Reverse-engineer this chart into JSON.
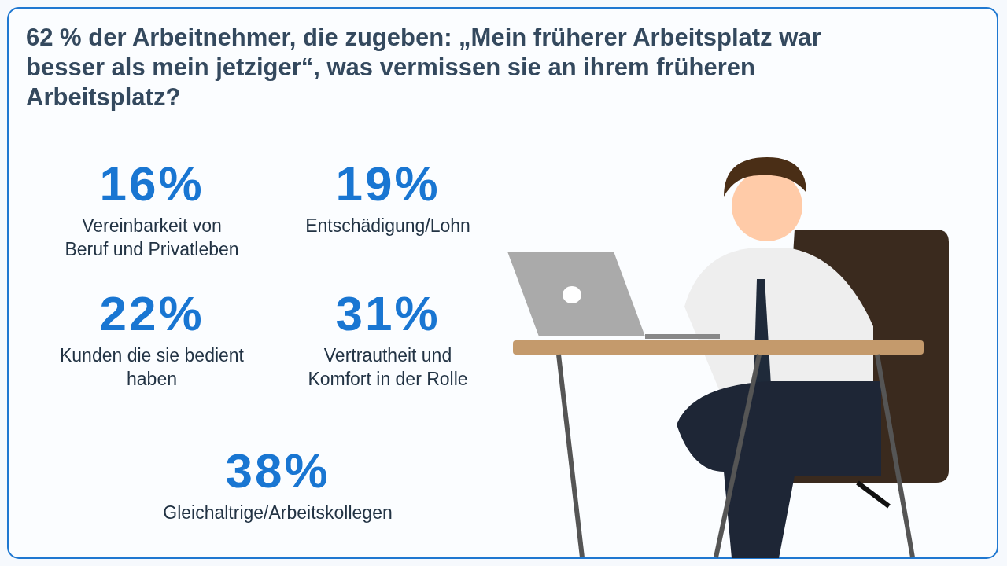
{
  "chart_data": {
    "type": "other",
    "title": "62 % der Arbeitnehmer, die zugeben: „Mein früherer Arbeitsplatz war besser als mein jetziger“, was vermissen sie an ihrem früheren Arbeitsplatz?",
    "categories": [
      "Vereinbarkeit von Beruf und Privatleben",
      "Entschädigung/Lohn",
      "Kunden die sie bedient haben",
      "Vertrautheit und Komfort in der Rolle",
      "Gleichaltrige/Arbeitskollegen"
    ],
    "values": [
      16,
      19,
      22,
      31,
      38
    ],
    "value_labels": [
      "16%",
      "19%",
      "22%",
      "31%",
      "38%"
    ],
    "color": "#1976d2"
  }
}
